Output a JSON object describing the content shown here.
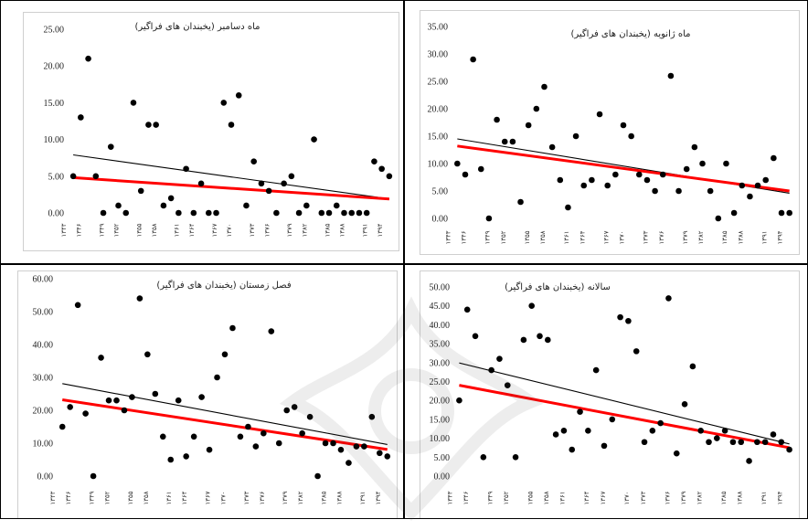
{
  "chart_data": [
    {
      "type": "scatter",
      "title": "ماه دسامبر (یخبندان های فراگیر)",
      "ylim": [
        0,
        25
      ],
      "yticks": [
        "0.00",
        "5.00",
        "10.00",
        "15.00",
        "20.00",
        "25.00"
      ],
      "x_labels": [
        "۱۳۴۳",
        "۱۳۴۶",
        "۱۳۴۹",
        "۱۳۵۲",
        "۱۳۵۵",
        "۱۳۵۸",
        "۱۳۶۱",
        "۱۳۶۴",
        "۱۳۶۷",
        "۱۳۷۰",
        "۱۳۷۳",
        "۱۳۷۶",
        "۱۳۷۹",
        "۱۳۸۲",
        "۱۳۸۵",
        "۱۳۸۸",
        "۱۳۹۱",
        "۱۳۹۴"
      ],
      "grid": false,
      "legend": "none",
      "points": [
        5,
        13,
        21,
        5,
        0,
        9,
        1,
        0,
        15,
        3,
        12,
        12,
        1,
        2,
        0,
        6,
        0,
        4,
        0,
        0,
        15,
        12,
        16,
        1,
        7,
        4,
        3,
        0,
        4,
        5,
        0,
        1,
        10,
        0,
        0,
        1,
        0,
        0,
        0,
        0,
        7,
        6,
        5
      ],
      "trend_black": [
        7.9,
        1.9
      ],
      "trend_red": [
        4.8,
        1.9
      ]
    },
    {
      "type": "scatter",
      "title": "ماه ژانویه (یخبندان های فراگیر)",
      "ylim": [
        0,
        35
      ],
      "yticks": [
        "0.00",
        "5.00",
        "10.00",
        "15.00",
        "20.00",
        "25.00",
        "30.00",
        "35.00"
      ],
      "x_labels": [
        "۱۳۴۳",
        "۱۳۴۶",
        "۱۳۴۹",
        "۱۳۵۲",
        "۱۳۵۵",
        "۱۳۵۸",
        "۱۳۶۱",
        "۱۳۶۴",
        "۱۳۶۷",
        "۱۳۷۰",
        "۱۳۷۳",
        "۱۳۷۶",
        "۱۳۷۹",
        "۱۳۸۲",
        "۱۳۸۵",
        "۱۳۸۸",
        "۱۳۹۱",
        "۱۳۹۴"
      ],
      "grid": false,
      "legend": "none",
      "points": [
        10,
        8,
        29,
        9,
        0,
        18,
        14,
        14,
        3,
        17,
        20,
        24,
        13,
        7,
        2,
        15,
        6,
        7,
        19,
        6,
        8,
        17,
        15,
        8,
        7,
        5,
        8,
        26,
        5,
        9,
        13,
        10,
        5,
        0,
        10,
        1,
        6,
        4,
        6,
        7,
        11,
        1,
        1
      ],
      "trend_black": [
        14.5,
        4.6
      ],
      "trend_red": [
        13.2,
        5.0
      ]
    },
    {
      "type": "scatter",
      "title": "فصل زمستان (یخبندان های فراگیر)",
      "ylim": [
        0,
        60
      ],
      "yticks": [
        "0.00",
        "10.00",
        "20.00",
        "30.00",
        "40.00",
        "50.00",
        "60.00"
      ],
      "x_labels": [
        "۱۳۴۳",
        "۱۳۴۶",
        "۱۳۴۹",
        "۱۳۵۲",
        "۱۳۵۵",
        "۱۳۵۸",
        "۱۳۶۱",
        "۱۳۶۴",
        "۱۳۶۷",
        "۱۳۷۰",
        "۱۳۷۳",
        "۱۳۷۶",
        "۱۳۷۹",
        "۱۳۸۲",
        "۱۳۸۵",
        "۱۳۸۸",
        "۱۳۹۱",
        "۱۳۹۴"
      ],
      "grid": false,
      "legend": "none",
      "points": [
        15,
        21,
        52,
        19,
        0,
        36,
        23,
        23,
        20,
        24,
        54,
        37,
        25,
        12,
        5,
        23,
        6,
        12,
        24,
        8,
        30,
        37,
        45,
        12,
        15,
        9,
        13,
        44,
        10,
        20,
        21,
        13,
        18,
        0,
        10,
        10,
        8,
        4,
        9,
        9,
        18,
        7,
        6
      ],
      "trend_black": [
        28.1,
        9.6
      ],
      "trend_red": [
        23.2,
        8.1
      ]
    },
    {
      "type": "scatter",
      "title": "سالانه (یخبندان های فراگیر)",
      "ylim": [
        0,
        50
      ],
      "yticks": [
        "0.00",
        "5.00",
        "10.00",
        "15.00",
        "20.00",
        "25.00",
        "30.00",
        "35.00",
        "40.00",
        "45.00",
        "50.00"
      ],
      "x_labels": [
        "۱۳۴۳",
        "۱۳۴۶",
        "۱۳۴۹",
        "۱۳۵۲",
        "۱۳۵۵",
        "۱۳۵۸",
        "۱۳۶۱",
        "۱۳۶۴",
        "۱۳۶۷",
        "۱۳۷۰",
        "۱۳۷۳",
        "۱۳۷۶",
        "۱۳۷۹",
        "۱۳۸۲",
        "۱۳۸۵",
        "۱۳۸۸",
        "۱۳۹۱",
        "۱۳۹۴"
      ],
      "grid": false,
      "legend": "none",
      "points": [
        20,
        44,
        37,
        5,
        28,
        31,
        24,
        5,
        36,
        45,
        37,
        36,
        11,
        12,
        7,
        17,
        12,
        28,
        8,
        15,
        42,
        41,
        33,
        9,
        12,
        14,
        47,
        6,
        19,
        29,
        12,
        9,
        10,
        12,
        9,
        9,
        4,
        9,
        9,
        11,
        9,
        7
      ],
      "trend_black": [
        29.9,
        8.5
      ],
      "trend_red": [
        24.0,
        7.5
      ]
    }
  ],
  "colors": {
    "marker": "#000000",
    "trend_black": "#000000",
    "trend_red": "#ff0000",
    "panel_border": "#cfcfcf",
    "cell_border": "#000000"
  }
}
